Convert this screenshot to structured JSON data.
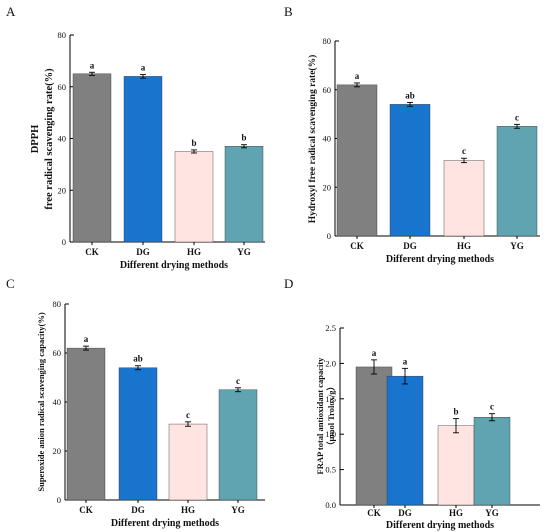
{
  "colors": [
    "#808080",
    "#1874cd",
    "#ffe4e1",
    "#5fa4b0"
  ],
  "chart_data": [
    {
      "panel": "A",
      "type": "bar",
      "categories": [
        "CK",
        "DG",
        "HG",
        "YG"
      ],
      "values": [
        65.0,
        64.0,
        35.0,
        37.0
      ],
      "errors": [
        0.6,
        0.7,
        0.6,
        0.6
      ],
      "letters": [
        "a",
        "a",
        "b",
        "b"
      ],
      "xlabel": "Different drying methods",
      "ylabel_lines": [
        "DPPH",
        "free radical scavenging rate(%)"
      ],
      "ylim": [
        0,
        80
      ],
      "yticks": [
        0,
        20,
        40,
        60,
        80
      ],
      "ytick_labels": [
        "0",
        "20",
        "40",
        "60",
        "80"
      ]
    },
    {
      "panel": "B",
      "type": "bar",
      "categories": [
        "CK",
        "DG",
        "HG",
        "YG"
      ],
      "values": [
        62.0,
        54.0,
        31.0,
        45.0
      ],
      "errors": [
        0.8,
        0.8,
        0.9,
        0.8
      ],
      "letters": [
        "a",
        "ab",
        "c",
        "c"
      ],
      "xlabel": "Different drying methods",
      "ylabel_lines": [
        "Hydroxyl free radical scavenging rate(%)"
      ],
      "ylim": [
        0,
        80
      ],
      "yticks": [
        0,
        20,
        40,
        60,
        80
      ],
      "ytick_labels": [
        "0",
        "20",
        "40",
        "60",
        "80"
      ]
    },
    {
      "panel": "C",
      "type": "bar",
      "categories": [
        "CK",
        "DG",
        "HG",
        "YG"
      ],
      "values": [
        62.0,
        54.0,
        31.0,
        45.0
      ],
      "errors": [
        0.8,
        0.8,
        0.9,
        0.8
      ],
      "letters": [
        "a",
        "ab",
        "c",
        "c"
      ],
      "xlabel": "Different drying methods",
      "ylabel_lines": [
        "Superoxide anion radical scavenging capacity(%)"
      ],
      "ylim": [
        0,
        80
      ],
      "yticks": [
        0,
        20,
        40,
        60,
        80
      ],
      "ytick_labels": [
        "0",
        "20",
        "40",
        "60",
        "80"
      ]
    },
    {
      "panel": "D",
      "type": "bar",
      "categories": [
        "CK",
        "DG",
        "HG",
        "YG"
      ],
      "values": [
        1.95,
        1.82,
        1.12,
        1.24
      ],
      "errors": [
        0.1,
        0.11,
        0.1,
        0.05
      ],
      "letters": [
        "a",
        "a",
        "b",
        "c"
      ],
      "xlabel": "Different drying methods",
      "ylabel_lines": [
        "FRAP total antioxidant capacity",
        "（µmol Trolox/g）"
      ],
      "ylim": [
        0,
        2.5
      ],
      "yticks": [
        0,
        0.5,
        1.0,
        1.5,
        2.0,
        2.5
      ],
      "ytick_labels": [
        "0.0",
        "0.5",
        "1.0",
        "1.5",
        "2.0",
        "2.5"
      ]
    }
  ]
}
